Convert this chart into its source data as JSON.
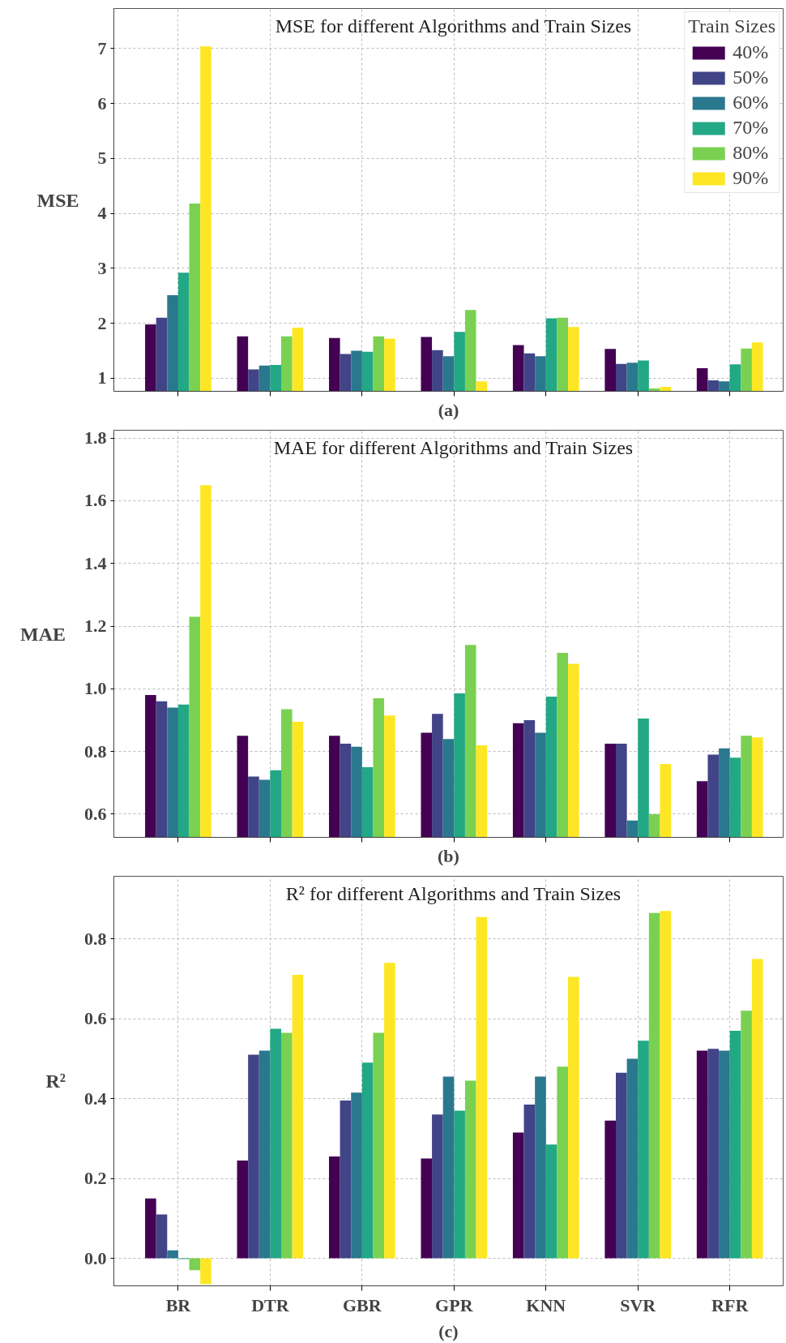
{
  "chart_data": [
    {
      "type": "bar",
      "title": "MSE for different Algorithms and Train Sizes",
      "xlabel": "(a)",
      "ylabel": "MSE",
      "legend_title": "Train Sizes",
      "categories": [
        null,
        null,
        null,
        null,
        null,
        null,
        null
      ],
      "series": [
        {
          "name": "40%",
          "color": "#440154",
          "values": [
            1.98,
            1.76,
            1.73,
            1.75,
            1.6,
            1.53,
            1.18
          ]
        },
        {
          "name": "50%",
          "color": "#414487",
          "values": [
            2.1,
            1.16,
            1.44,
            1.51,
            1.45,
            1.26,
            0.96
          ]
        },
        {
          "name": "60%",
          "color": "#2a788e",
          "values": [
            2.51,
            1.23,
            1.5,
            1.4,
            1.4,
            1.28,
            0.94
          ]
        },
        {
          "name": "70%",
          "color": "#22a884",
          "values": [
            2.92,
            1.24,
            1.48,
            1.84,
            2.09,
            1.32,
            1.25
          ]
        },
        {
          "name": "80%",
          "color": "#7ad151",
          "values": [
            4.18,
            1.76,
            1.76,
            2.24,
            2.1,
            0.81,
            1.54
          ]
        },
        {
          "name": "90%",
          "color": "#fde725",
          "values": [
            7.04,
            1.92,
            1.72,
            0.94,
            1.93,
            0.84,
            1.65
          ]
        }
      ],
      "ylim": [
        0.76,
        7.73
      ],
      "yticks": [
        1,
        2,
        3,
        4,
        5,
        6,
        7
      ],
      "grid": true,
      "legend": "top right",
      "tick_labels": "y"
    },
    {
      "type": "bar",
      "title": "MAE for different Algorithms and Train Sizes",
      "xlabel": "(b)",
      "ylabel": "MAE",
      "categories": [
        null,
        null,
        null,
        null,
        null,
        null,
        null
      ],
      "series": [
        {
          "color": "#440154",
          "values": [
            0.98,
            0.85,
            0.85,
            0.86,
            0.89,
            0.825,
            0.705
          ]
        },
        {
          "color": "#414487",
          "values": [
            0.96,
            0.72,
            0.825,
            0.92,
            0.9,
            0.825,
            0.79
          ]
        },
        {
          "color": "#2a788e",
          "values": [
            0.94,
            0.71,
            0.815,
            0.84,
            0.86,
            0.58,
            0.81
          ]
        },
        {
          "color": "#22a884",
          "values": [
            0.95,
            0.74,
            0.75,
            0.985,
            0.975,
            0.905,
            0.78
          ]
        },
        {
          "color": "#7ad151",
          "values": [
            1.23,
            0.935,
            0.97,
            1.14,
            1.115,
            0.6,
            0.85
          ]
        },
        {
          "color": "#fde725",
          "values": [
            1.65,
            0.895,
            0.915,
            0.82,
            1.08,
            0.76,
            0.845
          ]
        }
      ],
      "ylim": [
        0.526,
        1.825
      ],
      "yticks": [
        0.6,
        0.8,
        {
          "value": 1,
          "label": "1.0"
        },
        1.2,
        1.4,
        1.6,
        1.8
      ],
      "grid": true,
      "tick_labels": "y"
    },
    {
      "type": "bar",
      "title": "R² for different Algorithms and Train Sizes",
      "xlabel": "(c)",
      "ylabel": "R²",
      "categories": [
        "BR",
        "DTR",
        "GBR",
        "GPR",
        "KNN",
        "SVR",
        "RFR"
      ],
      "series": [
        {
          "color": "#440154",
          "values": [
            0.15,
            0.245,
            0.255,
            0.25,
            0.315,
            0.345,
            0.52
          ]
        },
        {
          "color": "#414487",
          "values": [
            0.11,
            0.51,
            0.395,
            0.36,
            0.385,
            0.465,
            0.525
          ]
        },
        {
          "color": "#2a788e",
          "values": [
            0.02,
            0.52,
            0.415,
            0.455,
            0.455,
            0.5,
            0.52
          ]
        },
        {
          "color": "#22a884",
          "values": [
            -0.002,
            0.575,
            0.49,
            0.37,
            0.285,
            0.545,
            0.57
          ]
        },
        {
          "color": "#7ad151",
          "values": [
            -0.03,
            0.565,
            0.565,
            0.445,
            0.48,
            0.865,
            0.62
          ]
        },
        {
          "color": "#fde725",
          "values": [
            -0.065,
            0.71,
            0.74,
            0.855,
            0.705,
            0.87,
            0.75
          ]
        }
      ],
      "ylim": [
        -0.069,
        0.957
      ],
      "yticks": [
        {
          "value": 0,
          "label": "0.0"
        },
        0.2,
        0.4,
        0.6,
        0.8
      ],
      "grid": true
    }
  ]
}
